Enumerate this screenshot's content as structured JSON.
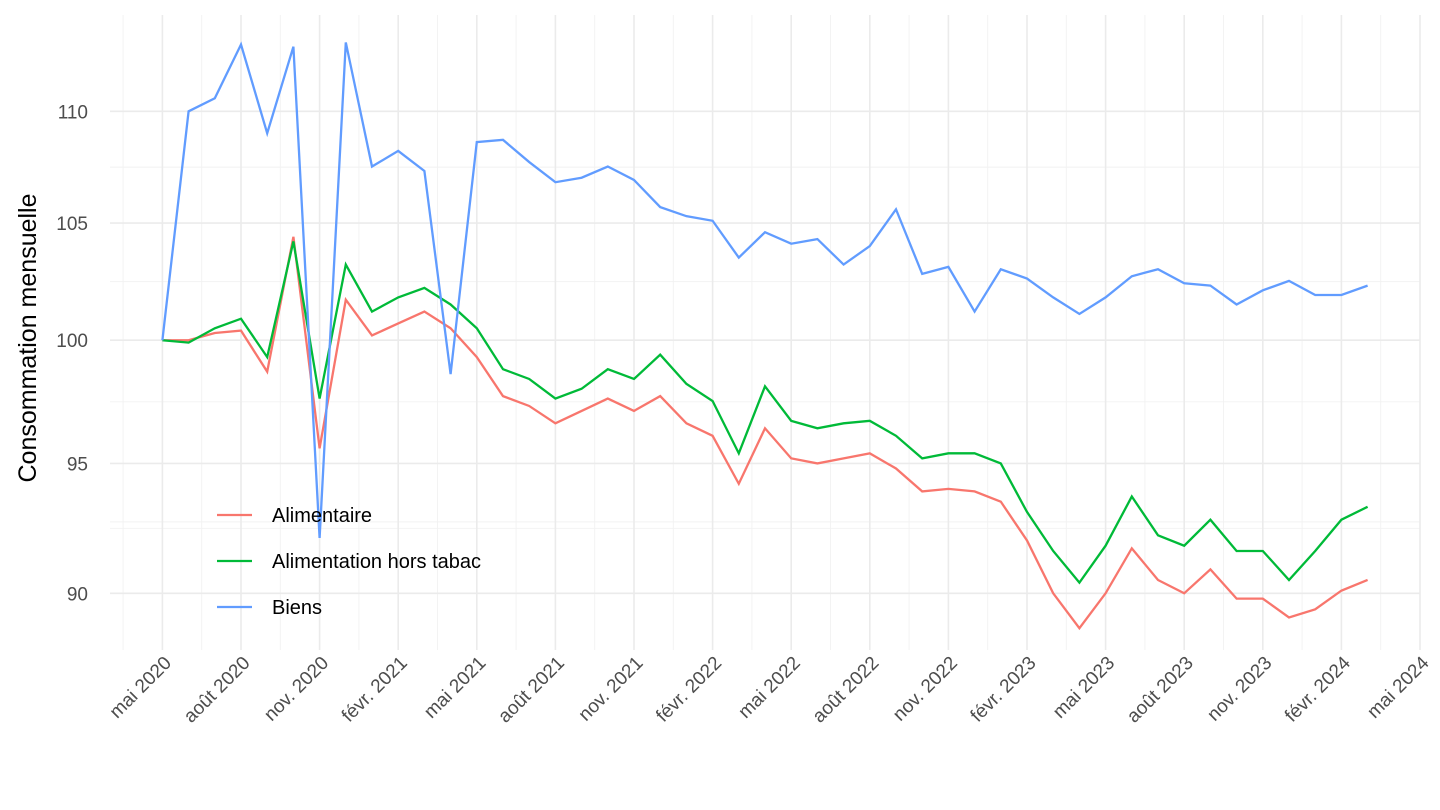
{
  "chart_data": {
    "type": "line",
    "y_label": "Consommation mensuelle",
    "x": [
      "2020-05",
      "2020-06",
      "2020-07",
      "2020-08",
      "2020-09",
      "2020-10",
      "2020-11",
      "2020-12",
      "2021-01",
      "2021-02",
      "2021-03",
      "2021-04",
      "2021-05",
      "2021-06",
      "2021-07",
      "2021-08",
      "2021-09",
      "2021-10",
      "2021-11",
      "2021-12",
      "2022-01",
      "2022-02",
      "2022-03",
      "2022-04",
      "2022-05",
      "2022-06",
      "2022-07",
      "2022-08",
      "2022-09",
      "2022-10",
      "2022-11",
      "2022-12",
      "2023-01",
      "2023-02",
      "2023-03",
      "2023-04",
      "2023-05",
      "2023-06",
      "2023-07",
      "2023-08",
      "2023-09",
      "2023-10",
      "2023-11",
      "2023-12",
      "2024-01",
      "2024-02",
      "2024-03"
    ],
    "series": [
      {
        "name": "Alimentaire",
        "color": "#F8766D",
        "values": [
          100.0,
          100.0,
          100.3,
          100.4,
          98.7,
          104.4,
          95.6,
          101.7,
          100.2,
          100.7,
          101.2,
          100.5,
          99.3,
          97.7,
          97.3,
          96.6,
          97.1,
          97.6,
          97.1,
          97.7,
          96.6,
          96.1,
          94.2,
          96.4,
          95.2,
          95.0,
          95.2,
          95.4,
          94.8,
          93.9,
          94.0,
          93.9,
          93.5,
          92.0,
          90.0,
          88.7,
          90.0,
          91.7,
          90.5,
          90.0,
          90.9,
          89.8,
          89.8,
          89.1,
          89.4,
          90.1,
          90.5
        ]
      },
      {
        "name": "Alimentation hors tabac",
        "color": "#00BA38",
        "values": [
          100.0,
          99.9,
          100.5,
          100.9,
          99.3,
          104.2,
          97.6,
          103.2,
          101.2,
          101.8,
          102.2,
          101.5,
          100.5,
          98.8,
          98.4,
          97.6,
          98.0,
          98.8,
          98.4,
          99.4,
          98.2,
          97.5,
          95.4,
          98.1,
          96.7,
          96.4,
          96.6,
          96.7,
          96.1,
          95.2,
          95.4,
          95.4,
          95.0,
          93.1,
          91.6,
          90.4,
          91.8,
          93.7,
          92.2,
          91.8,
          92.8,
          91.6,
          91.6,
          90.5,
          91.6,
          92.8,
          93.3
        ]
      },
      {
        "name": "Biens",
        "color": "#619CFF",
        "values": [
          100.0,
          110.0,
          110.6,
          113.1,
          109.0,
          113.0,
          92.1,
          113.2,
          107.5,
          108.2,
          107.3,
          98.6,
          108.6,
          108.7,
          107.7,
          106.8,
          107.0,
          107.5,
          106.9,
          105.7,
          105.3,
          105.1,
          103.5,
          104.6,
          104.1,
          104.3,
          103.2,
          104.0,
          105.6,
          102.8,
          103.1,
          101.2,
          103.0,
          102.6,
          101.8,
          101.1,
          101.8,
          102.7,
          103.0,
          102.4,
          102.3,
          101.5,
          102.1,
          102.5,
          101.9,
          101.9,
          102.3
        ]
      }
    ],
    "xlim": [
      "2020-03",
      "2024-05"
    ],
    "xticks": [
      {
        "value": "2020-05",
        "label": "mai 2020"
      },
      {
        "value": "2020-08",
        "label": "août 2020"
      },
      {
        "value": "2020-11",
        "label": "nov. 2020"
      },
      {
        "value": "2021-02",
        "label": "févr. 2021"
      },
      {
        "value": "2021-05",
        "label": "mai 2021"
      },
      {
        "value": "2021-08",
        "label": "août 2021"
      },
      {
        "value": "2021-11",
        "label": "nov. 2021"
      },
      {
        "value": "2022-02",
        "label": "févr. 2022"
      },
      {
        "value": "2022-05",
        "label": "mai 2022"
      },
      {
        "value": "2022-08",
        "label": "août 2022"
      },
      {
        "value": "2022-11",
        "label": "nov. 2022"
      },
      {
        "value": "2023-02",
        "label": "févr. 2023"
      },
      {
        "value": "2023-05",
        "label": "mai 2023"
      },
      {
        "value": "2023-08",
        "label": "août 2023"
      },
      {
        "value": "2023-11",
        "label": "nov. 2023"
      },
      {
        "value": "2024-02",
        "label": "févr. 2024"
      },
      {
        "value": "2024-05",
        "label": "mai 2024"
      }
    ],
    "ylim": [
      87.9,
      114.5
    ],
    "yticks": [
      90,
      95,
      100,
      105,
      110
    ],
    "log_y": true,
    "grid": true,
    "legend_position": "bottom left"
  }
}
